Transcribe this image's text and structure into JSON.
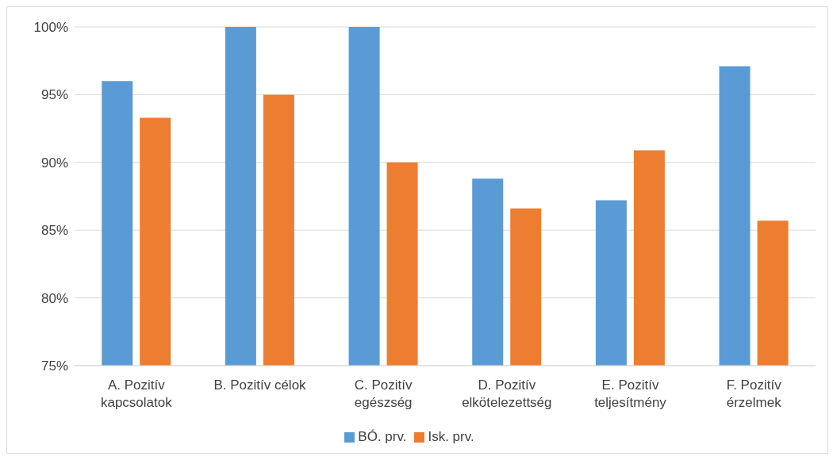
{
  "chart_data": {
    "type": "bar",
    "categories": [
      "A. Pozitív kapcsolatok",
      "B. Pozitív célok",
      "C. Pozitív egészség",
      "D. Pozitív elkötelezettség",
      "E. Pozitív teljesítmény",
      "F. Pozitív érzelmek"
    ],
    "series": [
      {
        "name": "BÓ. prv.",
        "color": "#5b9bd5",
        "values": [
          96.0,
          100,
          100,
          88.8,
          87.2,
          97.1
        ]
      },
      {
        "name": "Isk. prv.",
        "color": "#ed7d31",
        "values": [
          93.3,
          95.0,
          90.0,
          86.6,
          90.9,
          85.7
        ]
      }
    ],
    "ylim": [
      75,
      100
    ],
    "yticks": [
      {
        "value": 75,
        "label": "75%"
      },
      {
        "value": 80,
        "label": "80%"
      },
      {
        "value": 85,
        "label": "85%"
      },
      {
        "value": 90,
        "label": "90%"
      },
      {
        "value": 95,
        "label": "95%"
      },
      {
        "value": 100,
        "label": "100%"
      }
    ],
    "grid": "y",
    "legend": "bottom"
  }
}
